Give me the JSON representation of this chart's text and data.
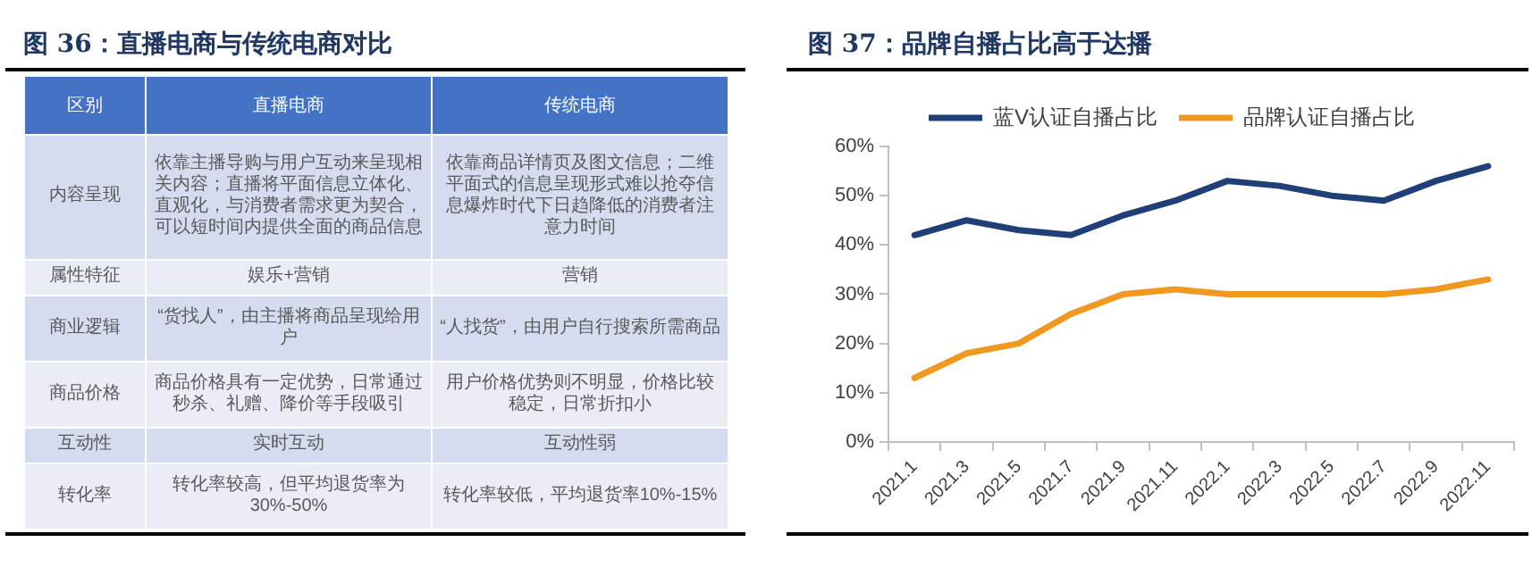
{
  "chart_data": [
    {
      "type": "other",
      "title": "图 36：直播电商与传统电商对比",
      "categories": [
        "区别",
        "直播电商",
        "传统电商"
      ],
      "cell_labels": [
        [
          "内容呈现",
          "依靠主播导购与用户互动来呈现相关内容；直播将平面信息立体化、直观化，与消费者需求更为契合，可以短时间内提供全面的商品信息",
          "依靠商品详情页及图文信息；二维平面式的信息呈现形式难以抢夺信息爆炸时代下日趋降低的消费者注意力时间"
        ],
        [
          "属性特征",
          "娱乐+营销",
          "营销"
        ],
        [
          "商业逻辑",
          "“货找人”，由主播将商品呈现给用户",
          "“人找货”，由用户自行搜索所需商品"
        ],
        [
          "商品价格",
          "商品价格具有一定优势，日常通过秒杀、礼赠、降价等手段吸引",
          "用户价格优势则不明显，价格比较稳定，日常折扣小"
        ],
        [
          "互动性",
          "实时互动",
          "互动性弱"
        ],
        [
          "转化率",
          "转化率较高，但平均退货率为30%-50%",
          "转化率较低，平均退货率10%-15%"
        ]
      ]
    },
    {
      "type": "line",
      "title": "图 37：品牌自播占比高于达播",
      "categories": [
        "2021.1",
        "2021.3",
        "2021.5",
        "2021.7",
        "2021.9",
        "2021.11",
        "2022.1",
        "2022.3",
        "2022.5",
        "2022.7",
        "2022.9",
        "2022.11"
      ],
      "series": [
        {
          "name": "蓝V认证自播占比",
          "color": "#203f78",
          "values": [
            42,
            45,
            43,
            42,
            46,
            49,
            53,
            52,
            50,
            49,
            53,
            56
          ]
        },
        {
          "name": "品牌认证自播占比",
          "color": "#f0981f",
          "values": [
            13,
            18,
            20,
            26,
            30,
            31,
            30,
            30,
            30,
            30,
            31,
            33
          ]
        }
      ],
      "ylim": [
        0,
        60
      ],
      "yticks": [
        {
          "value": 0,
          "label": "0%"
        },
        {
          "value": 10,
          "label": "10%"
        },
        {
          "value": 20,
          "label": "20%"
        },
        {
          "value": 30,
          "label": "30%"
        },
        {
          "value": 40,
          "label": "40%"
        },
        {
          "value": 50,
          "label": "50%"
        },
        {
          "value": 60,
          "label": "60%"
        }
      ],
      "grid": false,
      "legend": "top"
    }
  ]
}
